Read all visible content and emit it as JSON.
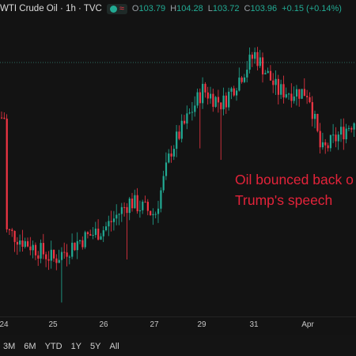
{
  "header": {
    "title": "WTI Crude Oil · 1h · TVC",
    "open_label": "O",
    "open": "103.79",
    "high_label": "H",
    "high": "104.28",
    "low_label": "L",
    "low": "103.72",
    "close_label": "C",
    "close": "103.96",
    "change": "+0.15 (+0.14%)",
    "icons": [
      "market-status-dot-icon",
      "wave-icon"
    ],
    "colors": {
      "up": "#22ab94",
      "down": "#f23645"
    }
  },
  "annotation": {
    "line1": "Oil bounced back o",
    "line2": "Trump's speech",
    "color": "#e4233a"
  },
  "x_axis": {
    "ticks": [
      "24",
      "25",
      "26",
      "27",
      "29",
      "31",
      "Apr"
    ]
  },
  "range_buttons": [
    "3M",
    "6M",
    "YTD",
    "1Y",
    "5Y",
    "All"
  ],
  "chart_data": {
    "type": "candlestick",
    "title": "WTI Crude Oil · 1h · TVC",
    "x_ticks": [
      "24",
      "25",
      "26",
      "27",
      "29",
      "31",
      "Apr"
    ],
    "price_line": "dotted",
    "trend_anchors": [
      {
        "x": "24",
        "price": 94.5
      },
      {
        "x": "25",
        "price": 92.0
      },
      {
        "x": "25.5",
        "price": 93.6
      },
      {
        "x": "26",
        "price": 94.6
      },
      {
        "x": "26.5",
        "price": 96.9
      },
      {
        "x": "27",
        "price": 95.8
      },
      {
        "x": "27.7",
        "price": 101.2
      },
      {
        "x": "29",
        "price": 106.3
      },
      {
        "x": "29.5",
        "price": 105.1
      },
      {
        "x": "31",
        "price": 109.3
      },
      {
        "x": "31.5",
        "price": 106.2
      },
      {
        "x": "Apr",
        "price": 106.1
      },
      {
        "x": "Apr.3",
        "price": 101.0
      },
      {
        "x": "Apr.8",
        "price": 103.96
      }
    ]
  }
}
